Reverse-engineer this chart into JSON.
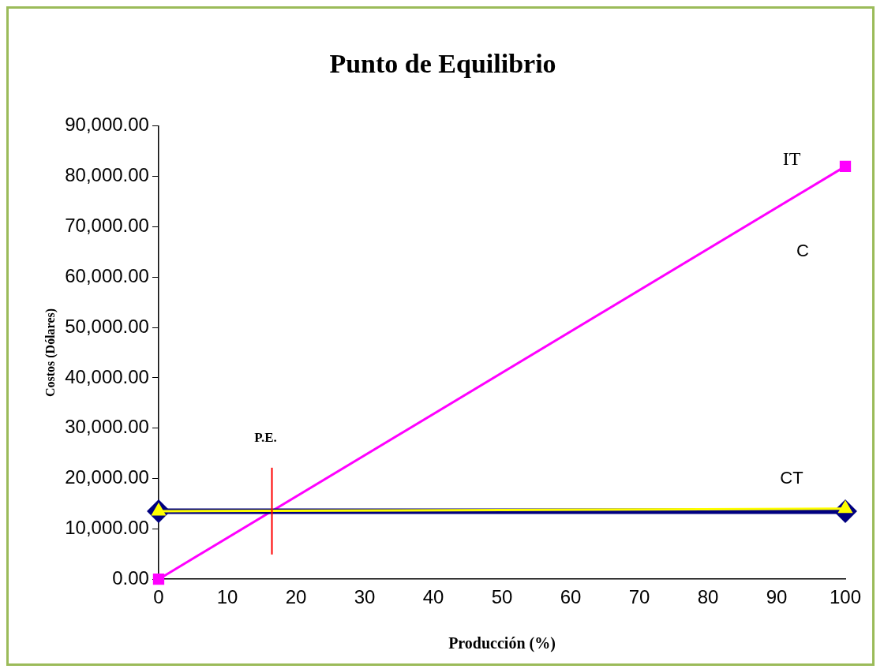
{
  "chart_data": {
    "type": "line",
    "title": "Punto de Equilibrio",
    "xlabel": "Producción (%)",
    "ylabel": "Costos (Dólares)",
    "x": [
      0,
      100
    ],
    "series": [
      {
        "name": "IT",
        "color": "#ff00ff",
        "marker": "square",
        "values": [
          0,
          82000
        ]
      },
      {
        "color": "#000080",
        "marker": "diamond",
        "values": [
          13500,
          13500
        ]
      },
      {
        "name": "CT",
        "color": "#ffff00",
        "marker": "triangle",
        "values": [
          13500,
          14000
        ]
      }
    ],
    "xlim": [
      0,
      100
    ],
    "xticks": [
      0,
      10,
      20,
      30,
      40,
      50,
      60,
      70,
      80,
      90,
      100
    ],
    "ylim": [
      0,
      90000
    ],
    "yticks": [
      {
        "value": 0,
        "label": "0.00"
      },
      {
        "value": 10000,
        "label": "10,000.00"
      },
      {
        "value": 20000,
        "label": "20,000.00"
      },
      {
        "value": 30000,
        "label": "30,000.00"
      },
      {
        "value": 40000,
        "label": "40,000.00"
      },
      {
        "value": 50000,
        "label": "50,000.00"
      },
      {
        "value": 60000,
        "label": "60,000.00"
      },
      {
        "value": 70000,
        "label": "70,000.00"
      },
      {
        "value": 80000,
        "label": "80,000.00"
      },
      {
        "value": 90000,
        "label": "90,000.00"
      }
    ],
    "ref_lines": [
      {
        "axis": "x",
        "value": 16.5,
        "label": "P.E.",
        "color": "#ff0000"
      }
    ],
    "annotations": [
      "C"
    ],
    "grid": false,
    "legend": false
  }
}
